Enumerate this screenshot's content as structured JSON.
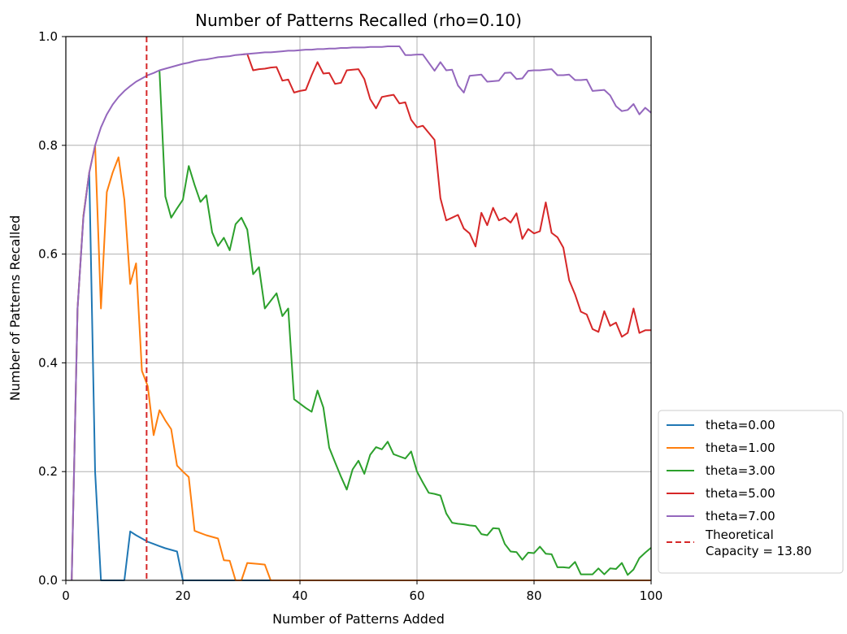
{
  "chart_data": {
    "type": "line",
    "title": "Number of Patterns Recalled (rho=0.10)",
    "xlabel": "Number of Patterns Added",
    "ylabel": "Number of Patterns Recalled",
    "xlim": [
      0,
      100
    ],
    "ylim": [
      0,
      1
    ],
    "xticks": [
      0,
      20,
      40,
      60,
      80,
      100
    ],
    "xtick_labels": [
      "0",
      "20",
      "40",
      "60",
      "80",
      "100"
    ],
    "yticks": [
      0,
      0.2,
      0.4,
      0.6,
      0.8,
      1.0
    ],
    "ytick_labels": [
      "0.0",
      "0.2",
      "0.4",
      "0.6",
      "0.8",
      "1.0"
    ],
    "grid": true,
    "legend_position": "lower-right outside",
    "series": [
      {
        "name": "theta=0.00",
        "color": "#1f77b4",
        "x": [
          1,
          2,
          3,
          4,
          5,
          6,
          7,
          8,
          9,
          10,
          11,
          12,
          13,
          14,
          15,
          16,
          17,
          18,
          19,
          20,
          21,
          22,
          23,
          24,
          25,
          26,
          27,
          28,
          29,
          30,
          31,
          32,
          33,
          34,
          35,
          36,
          37,
          38,
          39,
          40,
          41,
          42,
          43,
          44,
          45,
          46,
          47,
          48,
          49,
          50,
          51,
          52,
          53,
          54,
          55,
          56,
          57,
          58,
          59,
          60,
          61,
          62,
          63,
          64,
          65,
          66,
          67,
          68,
          69,
          70,
          71,
          72,
          73,
          74,
          75,
          76,
          77,
          78,
          79,
          80,
          81,
          82,
          83,
          84,
          85,
          86,
          87,
          88,
          89,
          90,
          91,
          92,
          93,
          94,
          95,
          96,
          97,
          98,
          99,
          100
        ],
        "y": [
          0,
          0.5,
          0.67,
          0.75,
          0.2,
          0,
          0,
          0,
          0,
          0,
          0.09,
          0.083,
          0.077,
          0.071,
          0.067,
          0.063,
          0.059,
          0.056,
          0.053,
          0,
          0,
          0,
          0,
          0,
          0,
          0,
          0,
          0,
          0,
          0,
          0,
          0,
          0,
          0,
          0,
          0,
          0,
          0,
          0,
          0,
          0,
          0,
          0,
          0,
          0,
          0,
          0,
          0,
          0,
          0,
          0,
          0,
          0,
          0,
          0,
          0,
          0,
          0,
          0,
          0,
          0,
          0,
          0,
          0,
          0,
          0,
          0,
          0,
          0,
          0,
          0,
          0,
          0,
          0,
          0,
          0,
          0,
          0,
          0,
          0,
          0,
          0,
          0,
          0,
          0,
          0,
          0,
          0,
          0,
          0,
          0,
          0,
          0,
          0,
          0,
          0,
          0,
          0,
          0,
          0
        ]
      },
      {
        "name": "theta=1.00",
        "color": "#ff7f0e",
        "x": [
          1,
          2,
          3,
          4,
          5,
          6,
          7,
          8,
          9,
          10,
          11,
          12,
          13,
          14,
          15,
          16,
          17,
          18,
          19,
          20,
          21,
          22,
          23,
          24,
          25,
          26,
          27,
          28,
          29,
          30,
          31,
          32,
          33,
          34,
          35,
          36,
          37,
          38,
          39,
          40,
          41,
          42,
          43,
          44,
          45,
          46,
          47,
          48,
          49,
          50,
          51,
          52,
          53,
          54,
          55,
          56,
          57,
          58,
          59,
          60,
          61,
          62,
          63,
          64,
          65,
          66,
          67,
          68,
          69,
          70,
          71,
          72,
          73,
          74,
          75,
          76,
          77,
          78,
          79,
          80,
          81,
          82,
          83,
          84,
          85,
          86,
          87,
          88,
          89,
          90,
          91,
          92,
          93,
          94,
          95,
          96,
          97,
          98,
          99,
          100
        ],
        "y": [
          0,
          0.5,
          0.67,
          0.75,
          0.8,
          0.5,
          0.714,
          0.75,
          0.778,
          0.7,
          0.545,
          0.583,
          0.385,
          0.357,
          0.267,
          0.313,
          0.294,
          0.278,
          0.211,
          0.2,
          0.19,
          0.091,
          0.087,
          0.083,
          0.08,
          0.077,
          0.037,
          0.036,
          0,
          0,
          0.032,
          0.031,
          0.03,
          0.029,
          0,
          0,
          0,
          0,
          0,
          0,
          0,
          0,
          0,
          0,
          0,
          0,
          0,
          0,
          0,
          0,
          0,
          0,
          0,
          0,
          0,
          0,
          0,
          0,
          0,
          0,
          0,
          0,
          0,
          0,
          0,
          0,
          0,
          0,
          0,
          0,
          0,
          0,
          0,
          0,
          0,
          0,
          0,
          0,
          0,
          0,
          0,
          0,
          0,
          0,
          0,
          0,
          0,
          0,
          0,
          0,
          0,
          0,
          0,
          0,
          0,
          0,
          0,
          0,
          0,
          0
        ]
      },
      {
        "name": "theta=3.00",
        "color": "#2ca02c",
        "x": [
          16,
          17,
          18,
          19,
          20,
          21,
          22,
          23,
          24,
          25,
          26,
          27,
          28,
          29,
          30,
          31,
          32,
          33,
          34,
          35,
          36,
          37,
          38,
          39,
          40,
          41,
          42,
          43,
          44,
          45,
          46,
          47,
          48,
          49,
          50,
          51,
          52,
          53,
          54,
          55,
          56,
          57,
          58,
          59,
          60,
          61,
          62,
          63,
          64,
          65,
          66,
          67,
          68,
          69,
          70,
          71,
          72,
          73,
          74,
          75,
          76,
          77,
          78,
          79,
          80,
          81,
          82,
          83,
          84,
          85,
          86,
          87,
          88,
          89,
          90,
          91,
          92,
          93,
          94,
          95,
          96,
          97,
          98,
          99,
          100
        ],
        "y": [
          0.938,
          0.706,
          0.667,
          0.684,
          0.7,
          0.762,
          0.727,
          0.696,
          0.708,
          0.64,
          0.615,
          0.63,
          0.607,
          0.655,
          0.667,
          0.645,
          0.563,
          0.576,
          0.5,
          0.514,
          0.528,
          0.486,
          0.5,
          0.333,
          0.325,
          0.317,
          0.31,
          0.349,
          0.318,
          0.244,
          0.217,
          0.191,
          0.167,
          0.204,
          0.22,
          0.196,
          0.231,
          0.245,
          0.241,
          0.255,
          0.232,
          0.228,
          0.224,
          0.237,
          0.2,
          0.18,
          0.161,
          0.159,
          0.156,
          0.123,
          0.106,
          0.104,
          0.103,
          0.101,
          0.1,
          0.085,
          0.083,
          0.096,
          0.095,
          0.067,
          0.053,
          0.052,
          0.038,
          0.051,
          0.05,
          0.062,
          0.049,
          0.048,
          0.024,
          0.024,
          0.023,
          0.034,
          0.011,
          0.011,
          0.011,
          0.022,
          0.011,
          0.022,
          0.021,
          0.032,
          0.01,
          0.02,
          0.041,
          0.051,
          0.06
        ]
      },
      {
        "name": "theta=5.00",
        "color": "#d62728",
        "x": [
          30,
          31,
          32,
          33,
          34,
          35,
          36,
          37,
          38,
          39,
          40,
          41,
          42,
          43,
          44,
          45,
          46,
          47,
          48,
          49,
          50,
          51,
          52,
          53,
          54,
          55,
          56,
          57,
          58,
          59,
          60,
          61,
          62,
          63,
          64,
          65,
          66,
          67,
          68,
          69,
          70,
          71,
          72,
          73,
          74,
          75,
          76,
          77,
          78,
          79,
          80,
          81,
          82,
          83,
          84,
          85,
          86,
          87,
          88,
          89,
          90,
          91,
          92,
          93,
          94,
          95,
          96,
          97,
          98,
          99,
          100
        ],
        "y": [
          0.967,
          0.968,
          0.938,
          0.94,
          0.941,
          0.943,
          0.944,
          0.919,
          0.921,
          0.897,
          0.9,
          0.902,
          0.929,
          0.953,
          0.932,
          0.933,
          0.913,
          0.915,
          0.938,
          0.939,
          0.94,
          0.922,
          0.885,
          0.868,
          0.889,
          0.891,
          0.893,
          0.877,
          0.879,
          0.847,
          0.833,
          0.836,
          0.823,
          0.81,
          0.703,
          0.662,
          0.667,
          0.672,
          0.647,
          0.638,
          0.614,
          0.676,
          0.653,
          0.685,
          0.662,
          0.667,
          0.658,
          0.675,
          0.628,
          0.646,
          0.638,
          0.642,
          0.695,
          0.639,
          0.631,
          0.612,
          0.552,
          0.526,
          0.494,
          0.489,
          0.462,
          0.457,
          0.495,
          0.468,
          0.474,
          0.448,
          0.455,
          0.5,
          0.455,
          0.46,
          0.46
        ]
      },
      {
        "name": "theta=7.00",
        "color": "#9467bd",
        "x": [
          1,
          2,
          3,
          4,
          5,
          6,
          7,
          8,
          9,
          10,
          11,
          12,
          13,
          14,
          15,
          16,
          17,
          18,
          19,
          20,
          21,
          22,
          23,
          24,
          25,
          26,
          27,
          28,
          29,
          30,
          31,
          32,
          33,
          34,
          35,
          36,
          37,
          38,
          39,
          40,
          41,
          42,
          43,
          44,
          45,
          46,
          47,
          48,
          49,
          50,
          51,
          52,
          53,
          54,
          55,
          56,
          57,
          58,
          59,
          60,
          61,
          62,
          63,
          64,
          65,
          66,
          67,
          68,
          69,
          70,
          71,
          72,
          73,
          74,
          75,
          76,
          77,
          78,
          79,
          80,
          81,
          82,
          83,
          84,
          85,
          86,
          87,
          88,
          89,
          90,
          91,
          92,
          93,
          94,
          95,
          96,
          97,
          98,
          99,
          100
        ],
        "y": [
          0,
          0.5,
          0.667,
          0.75,
          0.8,
          0.833,
          0.857,
          0.875,
          0.889,
          0.9,
          0.909,
          0.917,
          0.923,
          0.929,
          0.933,
          0.938,
          0.941,
          0.944,
          0.947,
          0.95,
          0.952,
          0.955,
          0.957,
          0.958,
          0.96,
          0.962,
          0.963,
          0.964,
          0.966,
          0.967,
          0.968,
          0.969,
          0.97,
          0.971,
          0.971,
          0.972,
          0.973,
          0.974,
          0.974,
          0.975,
          0.976,
          0.976,
          0.977,
          0.977,
          0.978,
          0.978,
          0.979,
          0.979,
          0.98,
          0.98,
          0.98,
          0.981,
          0.981,
          0.981,
          0.982,
          0.982,
          0.982,
          0.966,
          0.966,
          0.967,
          0.967,
          0.952,
          0.937,
          0.953,
          0.938,
          0.939,
          0.91,
          0.897,
          0.928,
          0.929,
          0.93,
          0.917,
          0.918,
          0.919,
          0.933,
          0.934,
          0.922,
          0.923,
          0.937,
          0.938,
          0.938,
          0.939,
          0.94,
          0.929,
          0.929,
          0.93,
          0.92,
          0.92,
          0.921,
          0.9,
          0.901,
          0.902,
          0.892,
          0.872,
          0.863,
          0.865,
          0.876,
          0.857,
          0.869,
          0.86
        ]
      }
    ],
    "vline": {
      "label": "Theoretical\nCapacity = 13.80",
      "label_lines": [
        "Theoretical",
        "Capacity = 13.80"
      ],
      "x": 13.8,
      "color": "#d62728",
      "style": "dashed"
    }
  }
}
